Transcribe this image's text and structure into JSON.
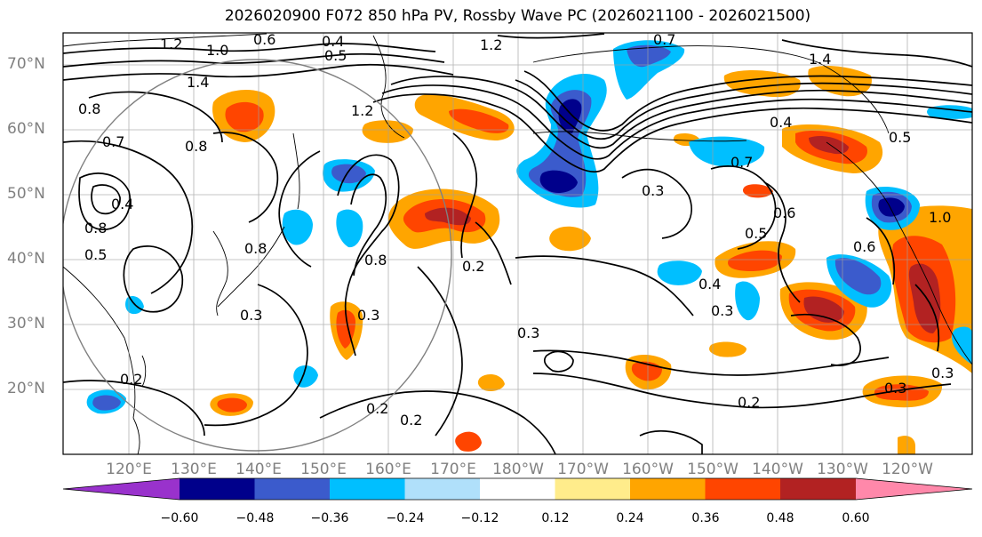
{
  "map": {
    "title": "2026020900 F072 850 hPa PV, Rossby Wave PC (2026021100 - 2026021500)",
    "lat_labels": [
      "70°N",
      "60°N",
      "50°N",
      "40°N",
      "30°N",
      "20°N"
    ],
    "lon_labels": [
      "120°E",
      "130°E",
      "140°E",
      "150°E",
      "160°E",
      "170°E",
      "180°W",
      "170°W",
      "160°W",
      "150°W",
      "140°W",
      "130°W",
      "120°W"
    ],
    "contour_labels": [
      "1.2",
      "1.0",
      "0.6",
      "0.4",
      "0.5",
      "1.2",
      "0.7",
      "1.4",
      "1.4",
      "0.8",
      "0.7",
      "0.8",
      "1.2",
      "0.4",
      "0.5",
      "0.7",
      "0.3",
      "0.6",
      "0.5",
      "0.8",
      "0.4",
      "0.8",
      "0.3",
      "0.2",
      "0.3",
      "0.3",
      "0.4",
      "0.3",
      "0.2",
      "0.2",
      "0.2",
      "0.2",
      "0.3",
      "0.3",
      "0.6",
      "1.0",
      "0.8",
      "0.5"
    ],
    "colors": {
      "contour": "#000000",
      "grid": "#a0a0a0",
      "coast": "#000000",
      "circle": "#808080"
    },
    "colorbar": {
      "ticks": [
        "−0.60",
        "−0.48",
        "−0.36",
        "−0.24",
        "−0.12",
        "0.12",
        "0.24",
        "0.36",
        "0.48",
        "0.60"
      ],
      "colors": [
        "#9932cc",
        "#00008b",
        "#3b5bcc",
        "#00bfff",
        "#b0e0fa",
        "#ffffff",
        "#ffec8b",
        "#ffa500",
        "#ff4500",
        "#b22222",
        "#ff88aa"
      ]
    }
  }
}
